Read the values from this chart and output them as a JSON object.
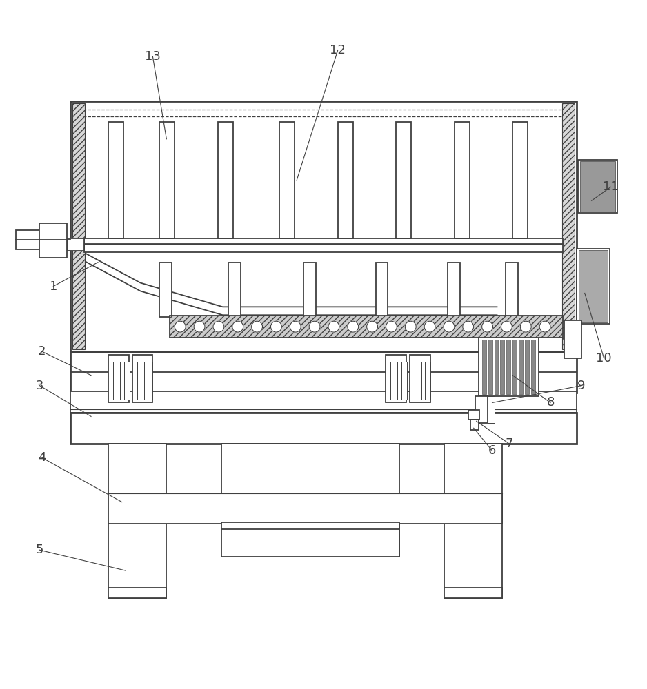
{
  "fig_width": 9.38,
  "fig_height": 10.0,
  "bg_color": "#ffffff",
  "lc": "#404040",
  "lw": 1.3,
  "lw2": 2.0,
  "fs": 13
}
